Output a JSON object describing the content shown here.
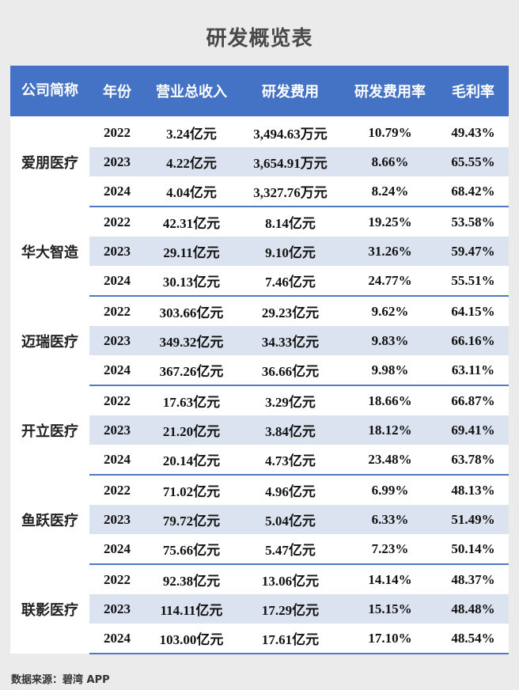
{
  "title": "研发概览表",
  "headers": {
    "company": "公司简称",
    "year": "年份",
    "revenue": "营业总收入",
    "rd_expense": "研发费用",
    "rd_ratio": "研发费用率",
    "gross_margin": "毛利率"
  },
  "groups": [
    {
      "company": "爱朋医疗",
      "rows": [
        {
          "year": "2022",
          "revenue": "3.24亿元",
          "rd_expense": "3,494.63万元",
          "rd_ratio": "10.79%",
          "gross_margin": "49.43%"
        },
        {
          "year": "2023",
          "revenue": "4.22亿元",
          "rd_expense": "3,654.91万元",
          "rd_ratio": "8.66%",
          "gross_margin": "65.55%"
        },
        {
          "year": "2024",
          "revenue": "4.04亿元",
          "rd_expense": "3,327.76万元",
          "rd_ratio": "8.24%",
          "gross_margin": "68.42%"
        }
      ]
    },
    {
      "company": "华大智造",
      "rows": [
        {
          "year": "2022",
          "revenue": "42.31亿元",
          "rd_expense": "8.14亿元",
          "rd_ratio": "19.25%",
          "gross_margin": "53.58%"
        },
        {
          "year": "2023",
          "revenue": "29.11亿元",
          "rd_expense": "9.10亿元",
          "rd_ratio": "31.26%",
          "gross_margin": "59.47%"
        },
        {
          "year": "2024",
          "revenue": "30.13亿元",
          "rd_expense": "7.46亿元",
          "rd_ratio": "24.77%",
          "gross_margin": "55.51%"
        }
      ]
    },
    {
      "company": "迈瑞医疗",
      "rows": [
        {
          "year": "2022",
          "revenue": "303.66亿元",
          "rd_expense": "29.23亿元",
          "rd_ratio": "9.62%",
          "gross_margin": "64.15%"
        },
        {
          "year": "2023",
          "revenue": "349.32亿元",
          "rd_expense": "34.33亿元",
          "rd_ratio": "9.83%",
          "gross_margin": "66.16%"
        },
        {
          "year": "2024",
          "revenue": "367.26亿元",
          "rd_expense": "36.66亿元",
          "rd_ratio": "9.98%",
          "gross_margin": "63.11%"
        }
      ]
    },
    {
      "company": "开立医疗",
      "rows": [
        {
          "year": "2022",
          "revenue": "17.63亿元",
          "rd_expense": "3.29亿元",
          "rd_ratio": "18.66%",
          "gross_margin": "66.87%"
        },
        {
          "year": "2023",
          "revenue": "21.20亿元",
          "rd_expense": "3.84亿元",
          "rd_ratio": "18.12%",
          "gross_margin": "69.41%"
        },
        {
          "year": "2024",
          "revenue": "20.14亿元",
          "rd_expense": "4.73亿元",
          "rd_ratio": "23.48%",
          "gross_margin": "63.78%"
        }
      ]
    },
    {
      "company": "鱼跃医疗",
      "rows": [
        {
          "year": "2022",
          "revenue": "71.02亿元",
          "rd_expense": "4.96亿元",
          "rd_ratio": "6.99%",
          "gross_margin": "48.13%"
        },
        {
          "year": "2023",
          "revenue": "79.72亿元",
          "rd_expense": "5.04亿元",
          "rd_ratio": "6.33%",
          "gross_margin": "51.49%"
        },
        {
          "year": "2024",
          "revenue": "75.66亿元",
          "rd_expense": "5.47亿元",
          "rd_ratio": "7.23%",
          "gross_margin": "50.14%"
        }
      ]
    },
    {
      "company": "联影医疗",
      "rows": [
        {
          "year": "2022",
          "revenue": "92.38亿元",
          "rd_expense": "13.06亿元",
          "rd_ratio": "14.14%",
          "gross_margin": "48.37%"
        },
        {
          "year": "2023",
          "revenue": "114.11亿元",
          "rd_expense": "17.29亿元",
          "rd_ratio": "15.15%",
          "gross_margin": "48.48%"
        },
        {
          "year": "2024",
          "revenue": "103.00亿元",
          "rd_expense": "17.61亿元",
          "rd_ratio": "17.10%",
          "gross_margin": "48.54%"
        }
      ]
    }
  ],
  "source": "数据来源：碧湾 APP",
  "colors": {
    "header_bg": "#4472c4",
    "stripe": "#dce3f0",
    "page_bg": "#ebebeb"
  }
}
